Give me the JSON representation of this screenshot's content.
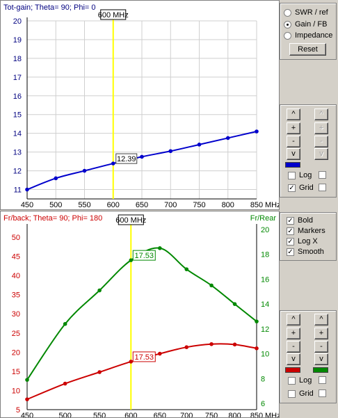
{
  "top_chart": {
    "title": "Tot-gain; Theta= 90; Phi= 0",
    "cursor_label": "600 MHz",
    "marker_value": "12.39",
    "x_unit": "MHz",
    "y_ticks": [
      "20",
      "19",
      "18",
      "17",
      "16",
      "15",
      "14",
      "13",
      "12",
      "11"
    ],
    "x_ticks": [
      "450",
      "500",
      "550",
      "600",
      "650",
      "700",
      "750",
      "800",
      "850"
    ],
    "colors": {
      "series": "#0000cc",
      "cursor": "#ffff00",
      "axis_text": "#000080"
    }
  },
  "bottom_chart": {
    "title": "Fr/back; Theta= 90; Phi= 180",
    "right_title": "Fr/Rear",
    "cursor_label": "600 MHz",
    "marker_green": "17.53",
    "marker_red": "17.53",
    "x_unit": "MHz",
    "left_ticks": [
      "50",
      "45",
      "40",
      "35",
      "30",
      "25",
      "20",
      "15",
      "10",
      "5"
    ],
    "right_ticks": [
      "20",
      "18",
      "16",
      "14",
      "12",
      "10",
      "8",
      "6"
    ],
    "x_ticks": [
      "450",
      "500",
      "550",
      "600",
      "650",
      "700",
      "750",
      "800",
      "850"
    ],
    "colors": {
      "red": "#cc0000",
      "green": "#008800",
      "cursor": "#ffff00"
    }
  },
  "chart_data": [
    {
      "type": "line",
      "title": "Tot-gain; Theta= 90; Phi= 0",
      "x": [
        450,
        500,
        550,
        600,
        650,
        700,
        750,
        800,
        850
      ],
      "series": [
        {
          "values": [
            11.0,
            11.6,
            12.0,
            12.39,
            12.75,
            13.05,
            13.4,
            13.75,
            14.1
          ]
        }
      ],
      "xlim": [
        450,
        850
      ],
      "ylim": [
        10.5,
        20
      ],
      "grid": true,
      "log_x": false
    },
    {
      "type": "line",
      "title": "Fr/back; Theta= 90; Phi= 180",
      "x": [
        450,
        500,
        550,
        600,
        650,
        700,
        750,
        800,
        850
      ],
      "series": [
        {
          "name": "Fr/back",
          "axis": "left",
          "values": [
            7.7,
            11.8,
            14.8,
            17.53,
            19.6,
            21.3,
            22.1,
            22.0,
            21.0
          ]
        },
        {
          "name": "Fr/Rear",
          "axis": "right",
          "values": [
            7.9,
            12.4,
            15.1,
            17.53,
            18.5,
            16.8,
            15.5,
            14.0,
            12.6
          ]
        }
      ],
      "xlim": [
        450,
        850
      ],
      "ylim_left": [
        5,
        52
      ],
      "ylim_right": [
        5.5,
        20
      ],
      "log_x": true,
      "grid": false
    }
  ],
  "controls": {
    "radios": [
      {
        "label": "SWR / ref",
        "checked": false
      },
      {
        "label": "Gain / FB",
        "checked": true
      },
      {
        "label": "Impedance",
        "checked": false
      }
    ],
    "reset_label": "Reset",
    "top_buttons": {
      "up": "^",
      "plus": "+",
      "minus": "-",
      "down": "v",
      "dis_up": "^",
      "dis_plus": "+",
      "dis_minus": "-",
      "dis_down": "v"
    },
    "top_swatch_color": "#0000cc",
    "top_checks": [
      {
        "label": "Log",
        "checked": false
      },
      {
        "label": "Grid",
        "checked": true
      }
    ],
    "mid_checks": [
      {
        "label": "Bold",
        "checked": true
      },
      {
        "label": "Markers",
        "checked": true
      },
      {
        "label": "Log X",
        "checked": true
      },
      {
        "label": "Smooth",
        "checked": true
      }
    ],
    "bottom_buttons": {
      "up": "^",
      "plus": "+",
      "minus": "-",
      "down": "v"
    },
    "bottom_swatch_left": "#cc0000",
    "bottom_swatch_right": "#008800",
    "bottom_checks": [
      {
        "label": "Log",
        "checked": false
      },
      {
        "label": "Grid",
        "checked": false
      }
    ]
  }
}
